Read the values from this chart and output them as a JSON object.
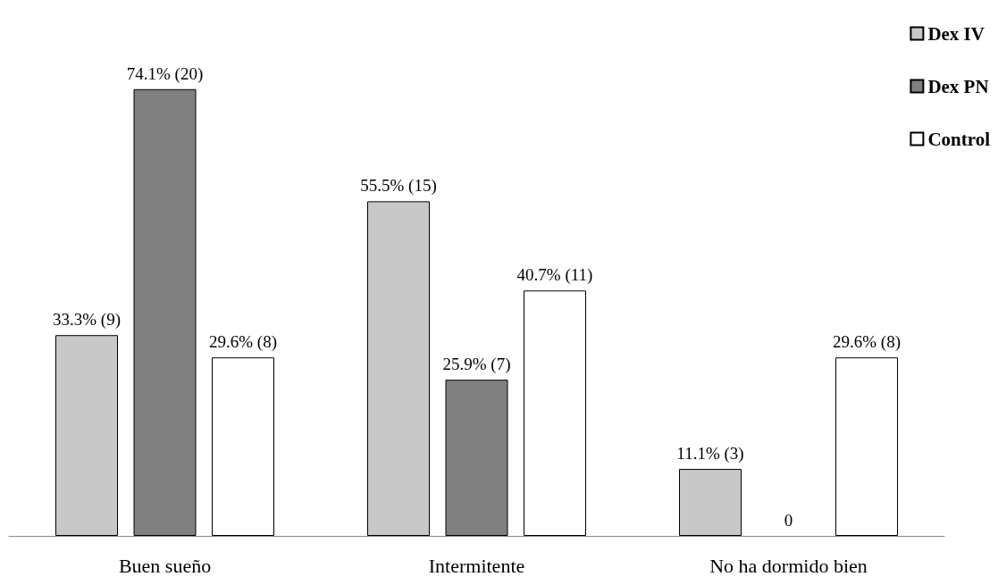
{
  "chart_data": {
    "type": "bar",
    "categories": [
      "Buen sueño",
      "Intermitente",
      "No ha dormido bien"
    ],
    "series": [
      {
        "name": "Dex IV",
        "color": "#c8c8c8",
        "values": [
          33.3,
          55.5,
          11.1
        ],
        "value_labels": [
          "33.3% (9)",
          "55.5% (15)",
          "11.1% (3)"
        ]
      },
      {
        "name": "Dex PN",
        "color": "#808080",
        "values": [
          74.1,
          25.9,
          0
        ],
        "value_labels": [
          "74.1% (20)",
          "25.9% (7)",
          "0"
        ]
      },
      {
        "name": "Control",
        "color": "#ffffff",
        "values": [
          29.6,
          40.7,
          29.6
        ],
        "value_labels": [
          "29.6% (8)",
          "40.7% (11)",
          "29.6% (8)"
        ]
      }
    ],
    "legend": "top right"
  }
}
